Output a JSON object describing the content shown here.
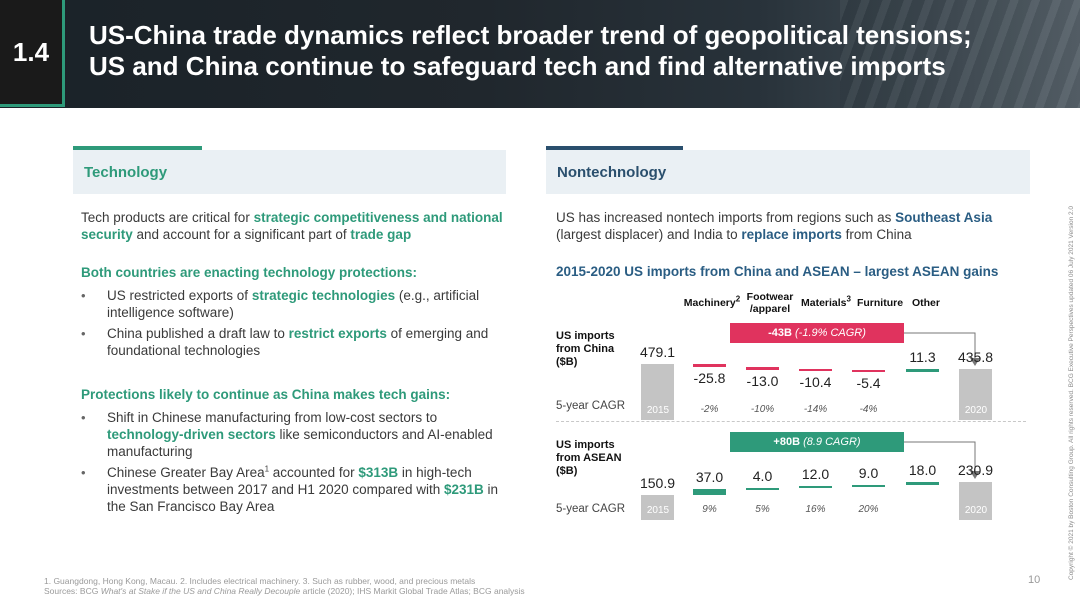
{
  "header": {
    "section_number": "1.4",
    "title_line1": "US-China trade dynamics reflect broader trend of geopolitical tensions;",
    "title_line2": "US and China continue to safeguard tech and find alternative imports"
  },
  "technology": {
    "heading": "Technology",
    "intro": {
      "p1": "Tech products are critical for ",
      "h1": "strategic competitiveness and national security",
      "p2": " and account for a significant part of ",
      "h2": "trade gap"
    },
    "section1_heading": "Both countries are enacting technology protections:",
    "bullet1": {
      "p1": "US restricted exports of ",
      "h1": "strategic technologies",
      "p2": " (e.g., artificial intelligence software)"
    },
    "bullet2": {
      "p1": "China published a draft law to ",
      "h1": "restrict exports",
      "p2": " of emerging and foundational technologies"
    },
    "section2_heading": "Protections likely to continue as China makes tech gains:",
    "bullet3": {
      "p1": "Shift in Chinese manufacturing from low-cost sectors to ",
      "h1": "technology-driven sectors",
      "p2": " like semiconductors and AI-enabled manufacturing"
    },
    "bullet4": {
      "p1": "Chinese Greater Bay Area",
      "sup": "1",
      "p2": " accounted for ",
      "h1": "$313B",
      "p3": " in high-tech investments between 2017 and H1 2020 compared with ",
      "h2": "$231B",
      "p4": " in the San Francisco Bay Area"
    }
  },
  "nontechnology": {
    "heading": "Nontechnology",
    "intro": {
      "p1": "US has increased nontech imports from regions such as ",
      "h1": "Southeast Asia",
      "p2": " (largest displacer) and India to ",
      "h2": "replace imports",
      "p3": " from China"
    }
  },
  "chart_data": {
    "type": "bar",
    "title": "2015-2020 US imports from China and ASEAN – largest ASEAN gains",
    "categories": [
      "2015",
      "Machinery",
      "Footwear /apparel",
      "Materials",
      "Furniture",
      "Other",
      "2020"
    ],
    "category_labels": {
      "machinery": "Machinery",
      "machinery_sup": "2",
      "footwear_1": "Footwear",
      "footwear_2": "/apparel",
      "materials": "Materials",
      "materials_sup": "3",
      "furniture": "Furniture",
      "other": "Other"
    },
    "cagr_label": "5-year CAGR",
    "series": [
      {
        "name_line1": "US imports",
        "name_line2": "from China",
        "name_line3": "($B)",
        "values": [
          479.1,
          -25.8,
          -13.0,
          -10.4,
          -5.4,
          11.3,
          435.8
        ],
        "value_labels": [
          "479.1",
          "-25.8",
          "-13.0",
          "-10.4",
          "-5.4",
          "11.3",
          "435.8"
        ],
        "cagr": [
          "-2%",
          "-10%",
          "-14%",
          "-4%"
        ],
        "summary_value": "-43B",
        "summary_cagr": "(-1.9% CAGR)",
        "color_increase": "#2e9a7a",
        "color_decrease": "#e0335e"
      },
      {
        "name_line1": "US imports",
        "name_line2": "from ASEAN",
        "name_line3": "($B)",
        "values": [
          150.9,
          37.0,
          4.0,
          12.0,
          9.0,
          18.0,
          230.9
        ],
        "value_labels": [
          "150.9",
          "37.0",
          "4.0",
          "12.0",
          "9.0",
          "18.0",
          "230.9"
        ],
        "cagr": [
          "9%",
          "5%",
          "16%",
          "20%"
        ],
        "summary_value": "+80B",
        "summary_cagr": "(8.9 CAGR)",
        "color_increase": "#2e9a7a"
      }
    ],
    "total_bar_color": "#c4c4c4",
    "callout_china_color": "#e0335e",
    "callout_asean_color": "#2e9a7a",
    "year_start": "2015",
    "year_end": "2020"
  },
  "footer": {
    "notes": "1. Guangdong, Hong Kong, Macau. 2. Includes electrical machinery. 3. Such as rubber, wood, and precious metals",
    "sources_prefix": "Sources: BCG ",
    "sources_title": "What's at Stake if the US and China Really Decouple",
    "sources_suffix": " article (2020); IHS Markit Global Trade Atlas; BCG analysis",
    "page_number": "10",
    "copyright": "Copyright © 2021 by Boston Consulting Group. All rights reserved. BCG Executive Perspectives updated 06 July 2021 Version 2.0"
  }
}
